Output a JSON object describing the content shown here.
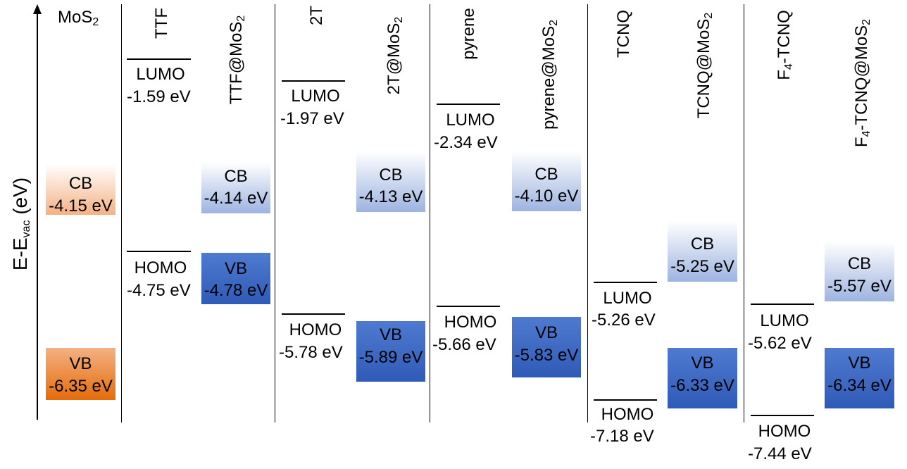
{
  "axis": {
    "label_main": "E-E",
    "label_sub": "vac",
    "label_tail": " (eV)"
  },
  "mos2": {
    "title_main": "MoS",
    "title_sub": "2",
    "cb": {
      "name": "CB",
      "value": "-4.15 eV"
    },
    "vb": {
      "name": "VB",
      "value": "-6.35 eV"
    }
  },
  "systems": [
    {
      "molecule": {
        "main": "TTF",
        "sub": "",
        "tail": ""
      },
      "composite": {
        "main": "TTF@MoS",
        "sub": "2",
        "tail": ""
      },
      "lumo": {
        "name": "LUMO",
        "value": "-1.59 eV"
      },
      "homo": {
        "name": "HOMO",
        "value": "-4.75 eV"
      },
      "cb": {
        "name": "CB",
        "value": "-4.14 eV"
      },
      "vb": {
        "name": "VB",
        "value": "-4.78 eV"
      }
    },
    {
      "molecule": {
        "main": "2T",
        "sub": "",
        "tail": ""
      },
      "composite": {
        "main": "2T@MoS",
        "sub": "2",
        "tail": ""
      },
      "lumo": {
        "name": "LUMO",
        "value": "-1.97 eV"
      },
      "homo": {
        "name": "HOMO",
        "value": "-5.78 eV"
      },
      "cb": {
        "name": "CB",
        "value": "-4.13 eV"
      },
      "vb": {
        "name": "VB",
        "value": "-5.89 eV"
      }
    },
    {
      "molecule": {
        "main": "pyrene",
        "sub": "",
        "tail": ""
      },
      "composite": {
        "main": "pyrene@MoS",
        "sub": "2",
        "tail": ""
      },
      "lumo": {
        "name": "LUMO",
        "value": "-2.34 eV"
      },
      "homo": {
        "name": "HOMO",
        "value": "-5.66 eV"
      },
      "cb": {
        "name": "CB",
        "value": "-4.10 eV"
      },
      "vb": {
        "name": "VB",
        "value": "-5.83 eV"
      }
    },
    {
      "molecule": {
        "main": "TCNQ",
        "sub": "",
        "tail": ""
      },
      "composite": {
        "main": "TCNQ@MoS",
        "sub": "2",
        "tail": ""
      },
      "lumo": {
        "name": "LUMO",
        "value": "-5.26 eV"
      },
      "homo": {
        "name": "HOMO",
        "value": "-7.18 eV"
      },
      "cb": {
        "name": "CB",
        "value": "-5.25 eV"
      },
      "vb": {
        "name": "VB",
        "value": "-6.33 eV"
      }
    },
    {
      "molecule": {
        "main": "F",
        "sub": "4",
        "tail": "-TCNQ"
      },
      "composite": {
        "main": "F",
        "sub": "4",
        "tail": "-TCNQ@MoS",
        "sub2": "2"
      },
      "lumo": {
        "name": "LUMO",
        "value": "-5.62 eV"
      },
      "homo": {
        "name": "HOMO",
        "value": "-7.44 eV"
      },
      "cb": {
        "name": "CB",
        "value": "-5.57 eV"
      },
      "vb": {
        "name": "VB",
        "value": "-6.34 eV"
      }
    }
  ],
  "colors": {
    "mos2_cb_top": "#ffffff",
    "mos2_cb_bottom": "#f4b183",
    "mos2_vb_top": "#f4b183",
    "mos2_vb_bottom": "#e46c0a",
    "cb_top": "#ffffff",
    "cb_bottom": "#9db3e0",
    "vb_top": "#4f7ad0",
    "vb_bottom": "#2f5bb8"
  }
}
